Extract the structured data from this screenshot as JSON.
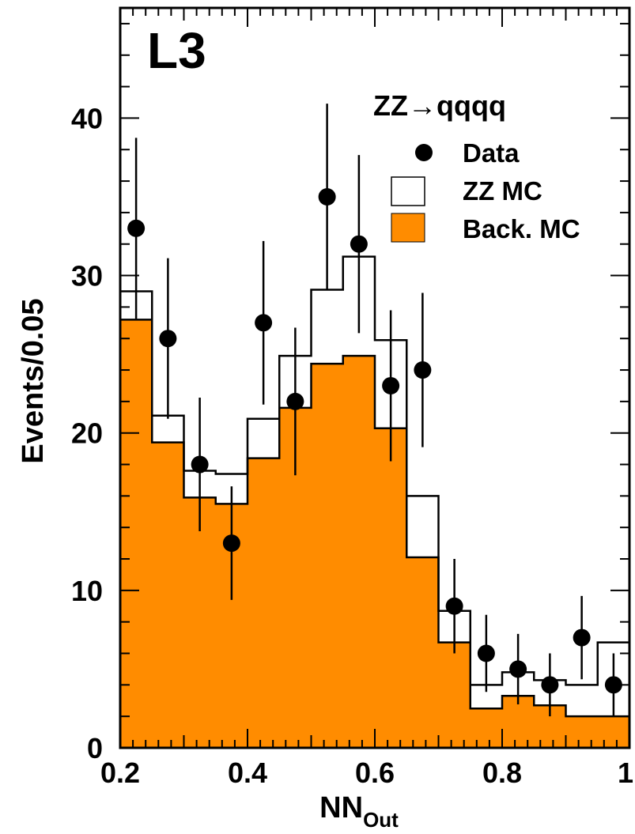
{
  "chart_data": {
    "type": "histogram",
    "experiment": "L3",
    "channel": {
      "prefix": "ZZ",
      "arrow": "→",
      "suffix": "qqqq"
    },
    "xlabel": {
      "main": "NN",
      "sub": "Out"
    },
    "ylabel": "Events/0.05",
    "xlim": [
      0.2,
      1.0
    ],
    "ylim": [
      0,
      47
    ],
    "xticks": [
      "0.2",
      "0.4",
      "0.6",
      "0.8",
      "1"
    ],
    "xtick_values": [
      0.2,
      0.4,
      0.6,
      0.8,
      1.0
    ],
    "yticks": [
      "0",
      "10",
      "20",
      "30",
      "40"
    ],
    "ytick_values": [
      0,
      10,
      20,
      30,
      40
    ],
    "bin_edges": [
      0.2,
      0.25,
      0.3,
      0.35,
      0.4,
      0.45,
      0.5,
      0.55,
      0.6,
      0.65,
      0.7,
      0.75,
      0.8,
      0.85,
      0.9,
      0.95,
      1.0
    ],
    "series": [
      {
        "name": "Back. MC",
        "kind": "filled-histogram",
        "color": "#ff8c00",
        "values": [
          27.2,
          19.4,
          15.9,
          15.5,
          18.4,
          21.6,
          24.4,
          24.9,
          20.3,
          12.1,
          6.7,
          2.5,
          3.3,
          2.7,
          2.0,
          2.0
        ]
      },
      {
        "name": "ZZ MC",
        "kind": "stacked-outline-histogram",
        "color": "#000000",
        "values": [
          29.0,
          21.1,
          17.6,
          17.4,
          20.9,
          24.9,
          29.1,
          31.2,
          25.9,
          16.0,
          8.7,
          4.0,
          4.8,
          4.3,
          4.0,
          6.7
        ]
      },
      {
        "name": "Data",
        "kind": "points-with-errors",
        "color": "#000000",
        "x": [
          0.225,
          0.275,
          0.325,
          0.375,
          0.425,
          0.475,
          0.525,
          0.575,
          0.625,
          0.675,
          0.725,
          0.775,
          0.825,
          0.875,
          0.925,
          0.975
        ],
        "values": [
          33,
          26,
          18,
          13,
          27,
          22,
          35,
          32,
          23,
          24,
          9,
          6,
          5,
          4,
          7,
          4
        ]
      }
    ],
    "legend": {
      "placement": "upper-right",
      "entries": [
        {
          "label": "Data",
          "marker": "circle"
        },
        {
          "label": "ZZ MC",
          "marker": "open-box"
        },
        {
          "label": "Back. MC",
          "marker": "filled-box"
        }
      ]
    },
    "grid": false
  }
}
